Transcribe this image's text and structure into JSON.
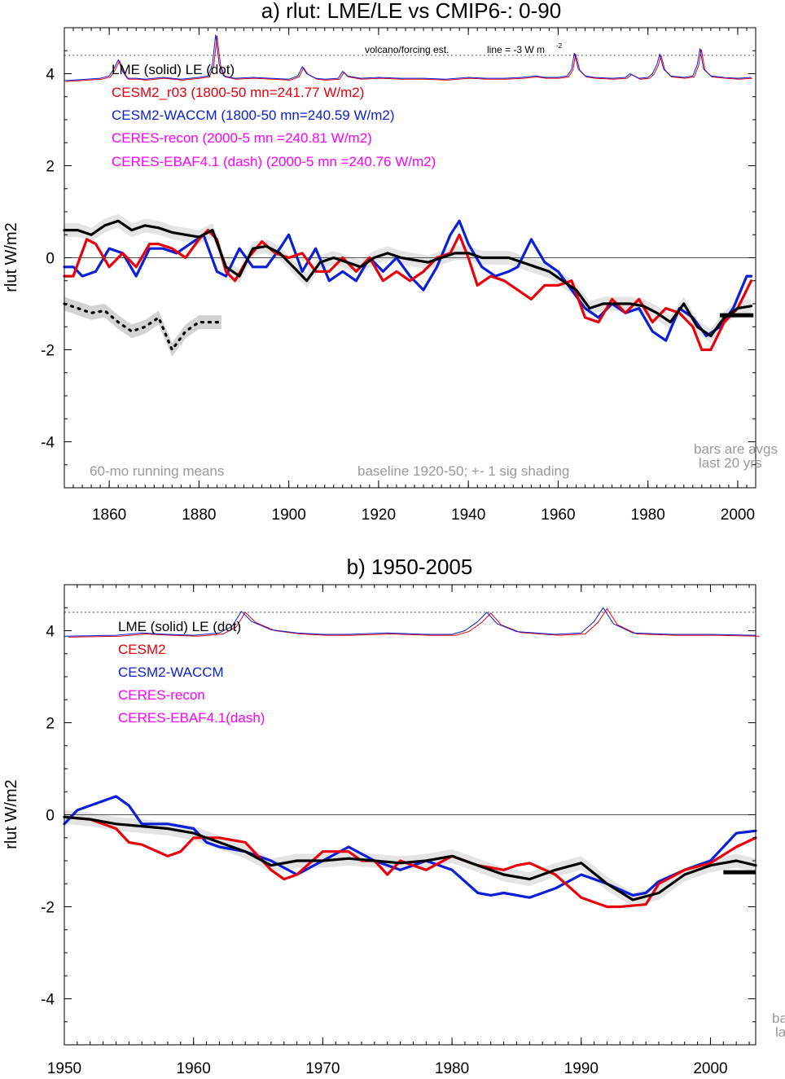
{
  "chart_data": [
    {
      "id": "a",
      "type": "line",
      "title": "a) rlut: LME/LE vs CMIP6-: 0-90",
      "xlabel": "",
      "ylabel": "rlut W/m2",
      "xlim": [
        1850,
        2004
      ],
      "ylim": [
        -5,
        5
      ],
      "xticks": [
        1860,
        1880,
        1900,
        1920,
        1940,
        1960,
        1980,
        2000
      ],
      "yticks": [
        4,
        2,
        0,
        -2,
        -4
      ],
      "legend": [
        {
          "text": "LME (solid)    LE (dot)",
          "color": "#000000"
        },
        {
          "text": "CESM2_r03 (1800-50 mn=241.77 W/m2)",
          "color": "#e8000b"
        },
        {
          "text": "CESM2-WACCM (1800-50 mn=240.59 W/m2)",
          "color": "#0a1fd6"
        },
        {
          "text": "CERES-recon (2000-5 mn =240.81 W/m2)",
          "color": "#ff00ff"
        },
        {
          "text": "CERES-EBAF4.1 (dash) (2000-5 mn =240.76 W/m2)",
          "color": "#ff00ff"
        }
      ],
      "annotations": {
        "volcano": "volcano/forcing est.",
        "line": "line = -3 W m",
        "line_sup": "-2",
        "running": "60-mo running means",
        "baseline": "baseline 1920-50; +- 1 sig shading",
        "bars1": "bars are avgs",
        "bars2": "last 20 yrs"
      },
      "reference_level": 4.4,
      "series": [
        {
          "name": "LME (solid)",
          "color": "#000000",
          "style": "solid",
          "x": [
            1850,
            1853,
            1856,
            1859,
            1862,
            1865,
            1868,
            1871,
            1874,
            1877,
            1880,
            1883,
            1886,
            1889,
            1892,
            1895,
            1898,
            1901,
            1904,
            1907,
            1910,
            1913,
            1916,
            1919,
            1922,
            1925,
            1928,
            1931,
            1934,
            1937,
            1940,
            1943,
            1946,
            1949,
            1952,
            1955,
            1958,
            1961,
            1964,
            1967,
            1970,
            1973,
            1976,
            1979,
            1982,
            1985,
            1988,
            1991,
            1994,
            1997,
            2000,
            2003
          ],
          "y": [
            0.6,
            0.6,
            0.5,
            0.7,
            0.8,
            0.6,
            0.7,
            0.65,
            0.55,
            0.5,
            0.45,
            0.6,
            -0.2,
            -0.4,
            0.2,
            0.25,
            0.1,
            -0.2,
            -0.5,
            -0.1,
            0.0,
            -0.1,
            -0.2,
            0.0,
            0.1,
            0.0,
            -0.05,
            -0.1,
            0.0,
            0.1,
            0.1,
            0.0,
            0.0,
            0.0,
            -0.1,
            -0.2,
            -0.3,
            -0.5,
            -0.7,
            -1.1,
            -1.0,
            -1.0,
            -1.0,
            -1.05,
            -1.2,
            -1.4,
            -1.0,
            -1.5,
            -1.7,
            -1.3,
            -1.1,
            -1.05
          ]
        },
        {
          "name": "CESM2_r03",
          "color": "#e8000b",
          "style": "solid",
          "x": [
            1850,
            1852,
            1855,
            1857,
            1860,
            1863,
            1866,
            1869,
            1871,
            1874,
            1877,
            1880,
            1882,
            1884,
            1886,
            1888,
            1891,
            1894,
            1897,
            1900,
            1903,
            1906,
            1909,
            1912,
            1915,
            1918,
            1921,
            1924,
            1927,
            1930,
            1933,
            1936,
            1938,
            1940,
            1942,
            1945,
            1948,
            1951,
            1954,
            1957,
            1960,
            1963,
            1966,
            1969,
            1972,
            1975,
            1978,
            1981,
            1984,
            1987,
            1990,
            1992,
            1994,
            1997,
            2000,
            2003
          ],
          "y": [
            -0.4,
            -0.4,
            0.4,
            0.3,
            -0.2,
            0.1,
            -0.2,
            0.3,
            0.3,
            0.2,
            0.0,
            0.4,
            0.6,
            0.4,
            -0.3,
            -0.5,
            0.0,
            0.35,
            0.1,
            0.0,
            0.1,
            -0.3,
            -0.3,
            0.0,
            -0.3,
            0.0,
            -0.5,
            -0.3,
            -0.5,
            -0.3,
            0.0,
            0.1,
            0.5,
            0.0,
            -0.6,
            -0.4,
            -0.5,
            -0.7,
            -0.9,
            -0.6,
            -0.6,
            -0.5,
            -1.3,
            -1.4,
            -0.9,
            -1.2,
            -0.9,
            -1.4,
            -1.1,
            -1.2,
            -1.5,
            -2.0,
            -2.0,
            -1.4,
            -1.1,
            -0.5
          ]
        },
        {
          "name": "CESM2-WACCM",
          "color": "#0a1fd6",
          "style": "solid",
          "x": [
            1850,
            1852,
            1854,
            1857,
            1860,
            1863,
            1866,
            1869,
            1872,
            1875,
            1878,
            1881,
            1884,
            1886,
            1889,
            1892,
            1895,
            1898,
            1900,
            1903,
            1906,
            1909,
            1912,
            1915,
            1918,
            1921,
            1924,
            1927,
            1930,
            1933,
            1936,
            1938,
            1940,
            1943,
            1946,
            1949,
            1951,
            1954,
            1957,
            1960,
            1963,
            1966,
            1969,
            1972,
            1975,
            1978,
            1981,
            1984,
            1987,
            1990,
            1993,
            1996,
            1999,
            2002,
            2003
          ],
          "y": [
            -0.2,
            -0.2,
            -0.4,
            -0.3,
            0.2,
            0.1,
            -0.4,
            0.2,
            0.2,
            0.1,
            0.3,
            0.5,
            -0.3,
            -0.4,
            0.2,
            -0.2,
            -0.2,
            0.2,
            0.5,
            -0.3,
            0.2,
            -0.5,
            -0.3,
            -0.5,
            0.0,
            -0.3,
            0.0,
            -0.4,
            -0.7,
            -0.2,
            0.5,
            0.8,
            0.3,
            -0.2,
            -0.4,
            -0.3,
            -0.2,
            0.4,
            -0.1,
            -0.3,
            -0.7,
            -1.1,
            -1.3,
            -1.0,
            -1.2,
            -1.1,
            -1.6,
            -1.8,
            -1.1,
            -1.3,
            -1.7,
            -1.5,
            -1.1,
            -0.4,
            -0.4
          ]
        },
        {
          "name": "LE (dot)",
          "color": "#000000",
          "style": "dotted",
          "x": [
            1850,
            1853,
            1856,
            1859,
            1862,
            1865,
            1868,
            1871,
            1874,
            1877,
            1880,
            1883,
            1885
          ],
          "y": [
            -1.0,
            -1.1,
            -1.2,
            -1.15,
            -1.4,
            -1.6,
            -1.5,
            -1.3,
            -2.0,
            -1.6,
            -1.4,
            -1.4,
            -1.4
          ]
        }
      ]
    },
    {
      "id": "b",
      "type": "line",
      "title": "b) 1950-2005",
      "xlabel": "",
      "ylabel": "rlut W/m2",
      "xlim": [
        1950,
        2003.5
      ],
      "ylim": [
        -5,
        5
      ],
      "xticks": [
        1950,
        1960,
        1970,
        1980,
        1990,
        2000
      ],
      "yticks": [
        4,
        2,
        0,
        -2,
        -4
      ],
      "legend": [
        {
          "text": "LME (solid)       LE (dot)",
          "color": "#000000"
        },
        {
          "text": "CESM2",
          "color": "#e8000b"
        },
        {
          "text": "CESM2-WACCM",
          "color": "#0a1fd6"
        },
        {
          "text": "CERES-recon",
          "color": "#ff00ff"
        },
        {
          "text": "CERES-EBAF4.1(dash)",
          "color": "#ff00ff"
        }
      ],
      "annotations": {
        "bars1": "ba",
        "bars2": "la"
      },
      "reference_level": 4.4,
      "series": [
        {
          "name": "LME (solid)",
          "color": "#000000",
          "style": "solid",
          "x": [
            1950,
            1952,
            1954,
            1956,
            1958,
            1960,
            1962,
            1964,
            1966,
            1968,
            1970,
            1972,
            1974,
            1976,
            1978,
            1980,
            1982,
            1984,
            1986,
            1988,
            1990,
            1992,
            1994,
            1996,
            1998,
            2000,
            2002,
            2003.5
          ],
          "y": [
            -0.05,
            -0.1,
            -0.2,
            -0.25,
            -0.3,
            -0.4,
            -0.6,
            -0.8,
            -1.1,
            -1.0,
            -1.0,
            -0.95,
            -1.0,
            -1.05,
            -1.0,
            -0.9,
            -1.1,
            -1.3,
            -1.4,
            -1.2,
            -1.05,
            -1.5,
            -1.85,
            -1.7,
            -1.3,
            -1.1,
            -1.0,
            -1.1
          ]
        },
        {
          "name": "CESM2",
          "color": "#e8000b",
          "style": "solid",
          "x": [
            1950,
            1952,
            1954,
            1955,
            1956,
            1958,
            1959,
            1960,
            1962,
            1964,
            1966,
            1967,
            1968,
            1970,
            1972,
            1973,
            1974,
            1975,
            1976,
            1977,
            1978,
            1980,
            1982,
            1984,
            1985,
            1986,
            1988,
            1990,
            1992,
            1993,
            1995,
            1996,
            1998,
            2000,
            2002,
            2003.5
          ],
          "y": [
            -0.05,
            -0.1,
            -0.3,
            -0.6,
            -0.65,
            -0.9,
            -0.8,
            -0.5,
            -0.5,
            -0.6,
            -1.2,
            -1.4,
            -1.3,
            -0.8,
            -0.8,
            -1.0,
            -1.0,
            -1.3,
            -1.0,
            -1.1,
            -1.2,
            -0.9,
            -1.1,
            -1.2,
            -1.1,
            -1.05,
            -1.3,
            -1.8,
            -2.0,
            -2.0,
            -1.95,
            -1.5,
            -1.2,
            -1.05,
            -0.7,
            -0.5
          ]
        },
        {
          "name": "CESM2-WACCM",
          "color": "#0a1fd6",
          "style": "solid",
          "x": [
            1950,
            1951,
            1952,
            1954,
            1955,
            1956,
            1958,
            1960,
            1961,
            1962,
            1964,
            1966,
            1968,
            1970,
            1972,
            1974,
            1976,
            1978,
            1980,
            1982,
            1983,
            1984,
            1986,
            1988,
            1990,
            1992,
            1994,
            1995,
            1996,
            1998,
            2000,
            2002,
            2003.5
          ],
          "y": [
            -0.2,
            0.1,
            0.2,
            0.4,
            0.2,
            -0.2,
            -0.2,
            -0.3,
            -0.6,
            -0.7,
            -0.8,
            -1.0,
            -1.3,
            -1.0,
            -0.7,
            -1.0,
            -1.2,
            -1.0,
            -1.2,
            -1.7,
            -1.75,
            -1.7,
            -1.8,
            -1.6,
            -1.3,
            -1.5,
            -1.75,
            -1.7,
            -1.45,
            -1.2,
            -1.0,
            -0.4,
            -0.35
          ]
        }
      ]
    }
  ],
  "volcano": {
    "a": {
      "x": [
        1850,
        1855,
        1858,
        1860,
        1861,
        1862,
        1863,
        1864,
        1866,
        1868,
        1870,
        1872,
        1874,
        1876,
        1878,
        1880,
        1882,
        1883,
        1883.7,
        1884.5,
        1885.5,
        1888,
        1892,
        1896,
        1900,
        1902,
        1903,
        1904,
        1906,
        1908,
        1911,
        1912,
        1913,
        1916,
        1920,
        1925,
        1930,
        1935,
        1940,
        1944,
        1948,
        1952,
        1955,
        1957,
        1960,
        1962,
        1963,
        1963.6,
        1964.5,
        1966,
        1968,
        1972,
        1975,
        1976,
        1978,
        1980,
        1981,
        1982,
        1982.6,
        1983.5,
        1985,
        1988,
        1990,
        1991,
        1991.6,
        1992.4,
        1994,
        1997,
        2000,
        2003
      ],
      "y": [
        3.85,
        3.88,
        3.9,
        3.95,
        4.1,
        4.3,
        4.05,
        3.9,
        3.9,
        3.88,
        3.9,
        3.92,
        3.9,
        3.88,
        3.9,
        3.92,
        3.95,
        4.2,
        4.85,
        4.2,
        3.95,
        3.9,
        3.92,
        3.9,
        3.88,
        3.95,
        4.15,
        4.0,
        3.9,
        3.88,
        3.9,
        4.05,
        3.95,
        3.9,
        3.92,
        3.9,
        3.9,
        3.88,
        3.92,
        3.9,
        3.9,
        3.92,
        3.95,
        3.92,
        3.92,
        3.95,
        4.1,
        4.45,
        4.1,
        3.95,
        3.92,
        3.9,
        3.92,
        4.0,
        3.9,
        3.92,
        4.0,
        4.2,
        4.42,
        4.1,
        3.95,
        3.92,
        3.95,
        4.2,
        4.55,
        4.1,
        3.95,
        3.92,
        3.9,
        3.92
      ]
    },
    "b": {
      "x": [
        1950,
        1954,
        1956,
        1958,
        1960,
        1962,
        1963,
        1963.7,
        1964.5,
        1966,
        1968,
        1970,
        1972,
        1975,
        1978,
        1980,
        1981,
        1982,
        1982.7,
        1983.5,
        1985,
        1988,
        1990,
        1991,
        1991.7,
        1992.5,
        1994,
        1997,
        2000,
        2003.5
      ],
      "y": [
        3.88,
        3.9,
        3.95,
        3.92,
        3.9,
        3.95,
        4.1,
        4.42,
        4.2,
        4.02,
        3.95,
        3.92,
        3.92,
        3.95,
        3.92,
        3.92,
        4.0,
        4.2,
        4.4,
        4.15,
        3.98,
        3.92,
        3.95,
        4.2,
        4.5,
        4.15,
        3.95,
        3.92,
        3.92,
        3.9
      ]
    }
  }
}
